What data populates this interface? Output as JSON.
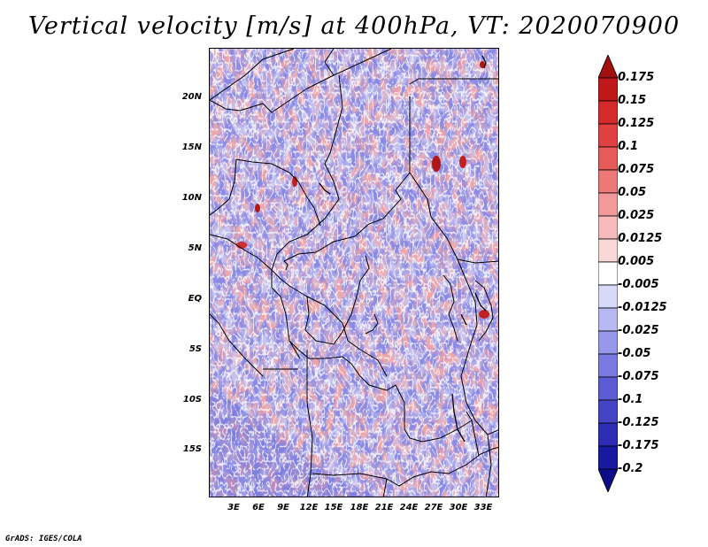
{
  "title": "Vertical velocity [m/s] at 400hPa, VT: 2020070900",
  "credit": "GrADS: IGES/COLA",
  "map": {
    "lat_labels": [
      "20N",
      "15N",
      "10N",
      "5N",
      "EQ",
      "5S",
      "10S",
      "15S"
    ],
    "lon_labels": [
      "3E",
      "6E",
      "9E",
      "12E",
      "15E",
      "18E",
      "21E",
      "24E",
      "27E",
      "30E",
      "33E"
    ]
  },
  "colorbar": {
    "levels": [
      "0.175",
      "0.15",
      "0.125",
      "0.1",
      "0.075",
      "0.05",
      "0.025",
      "0.0125",
      "0.005",
      "-0.005",
      "-0.0125",
      "-0.025",
      "-0.05",
      "-0.075",
      "-0.1",
      "-0.125",
      "-0.175",
      "-0.2"
    ],
    "colors": [
      "#a01010",
      "#c01818",
      "#d42a2a",
      "#e04040",
      "#e65a5a",
      "#ec7878",
      "#f29a9a",
      "#f6baba",
      "#fad8d8",
      "#ffffff",
      "#d8d8f8",
      "#b8b8f2",
      "#9898ea",
      "#7a7ae0",
      "#5c5cd4",
      "#4444c6",
      "#2c2cb4",
      "#1818a0",
      "#0c0c88"
    ]
  }
}
